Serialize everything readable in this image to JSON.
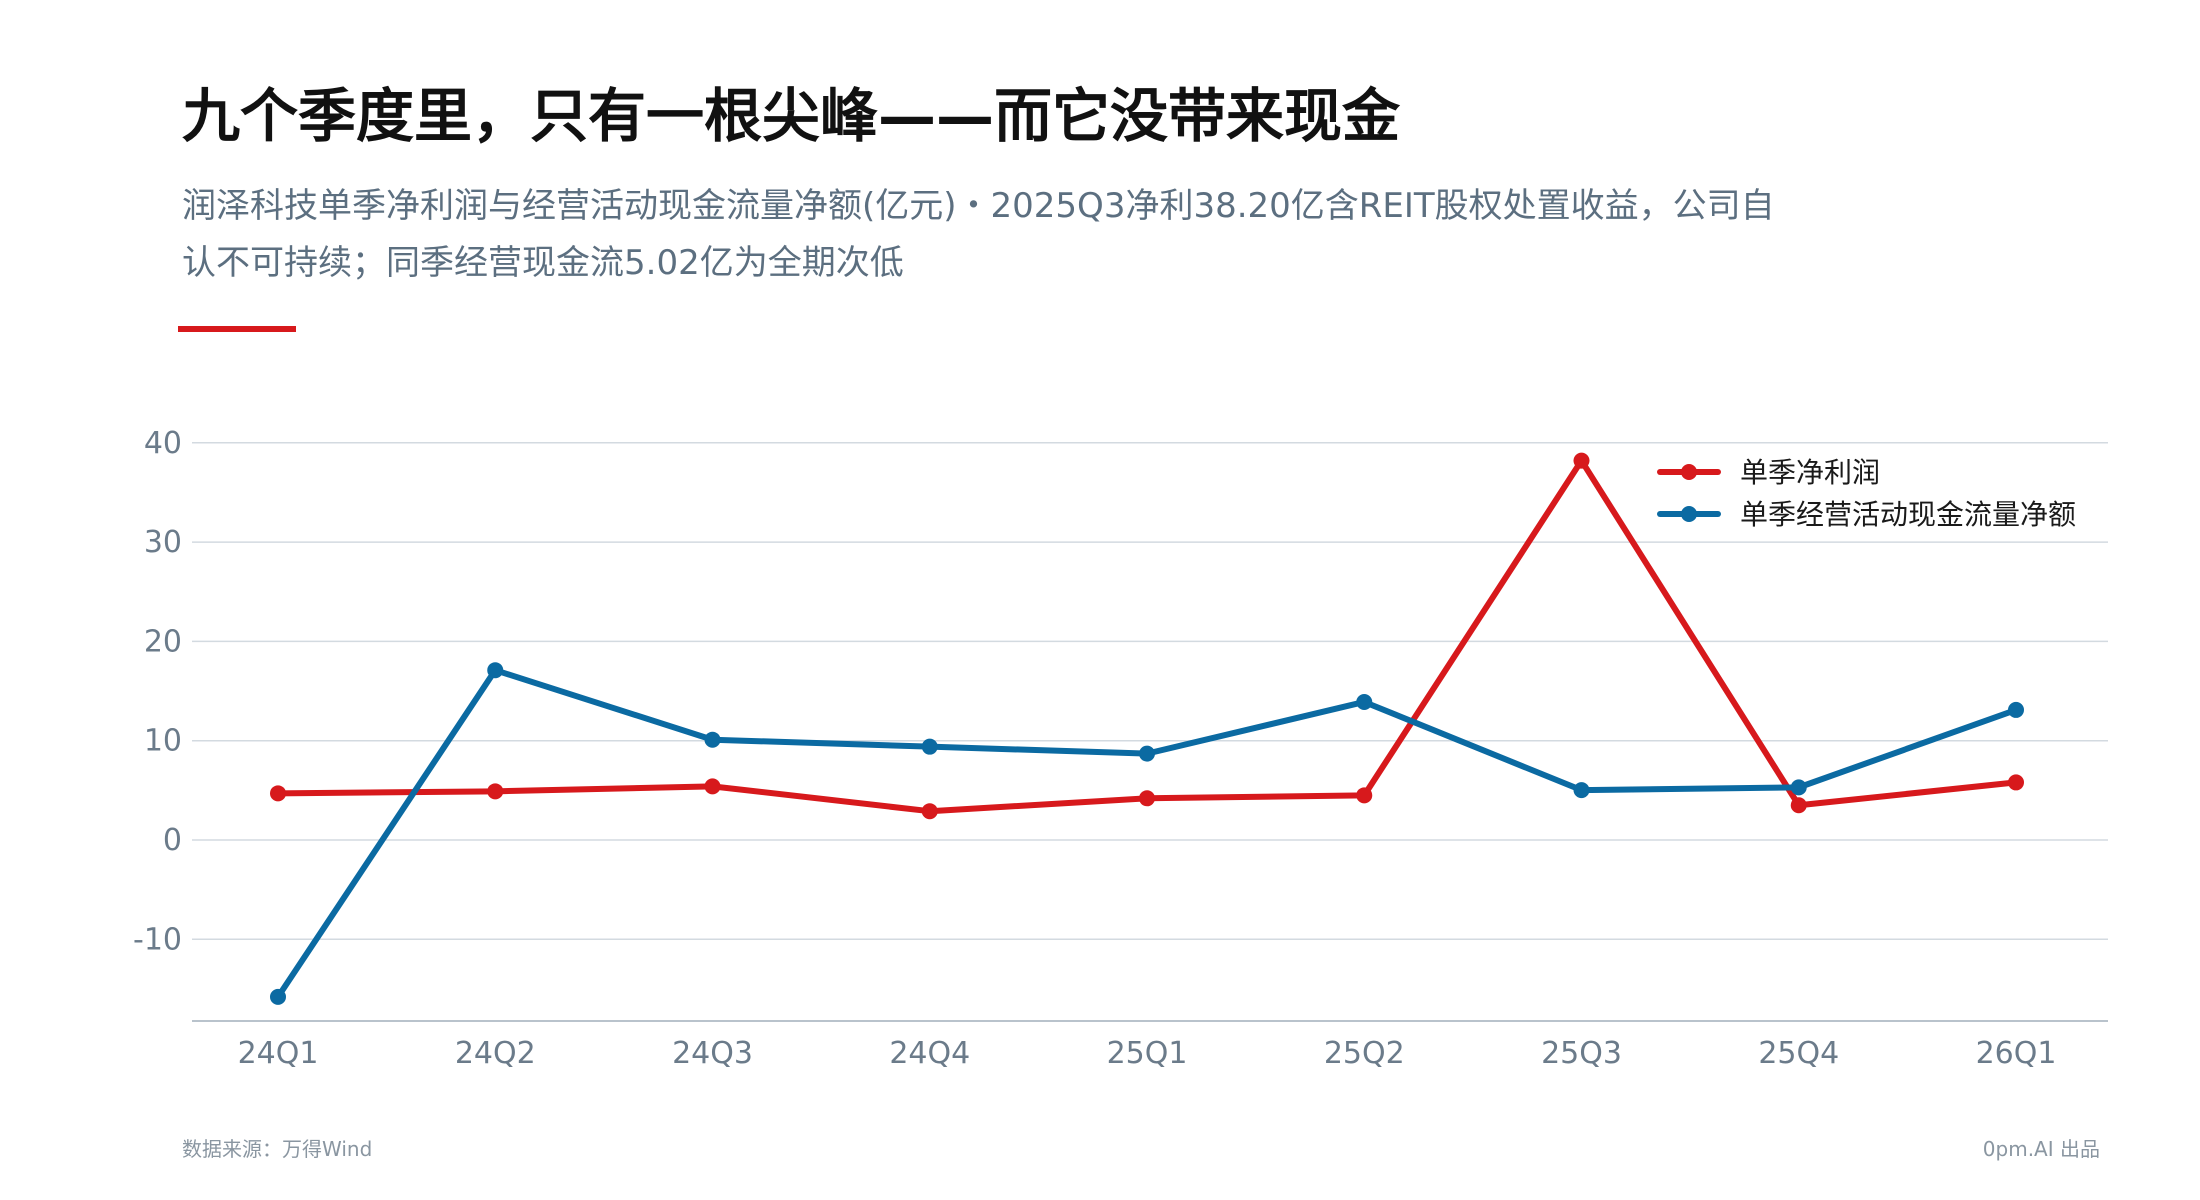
{
  "header": {
    "title": "九个季度里，只有一根尖峰——而它没带来现金",
    "subtitle": "润泽科技单季净利润与经营活动现金流量净额(亿元)・2025Q3净利38.20亿含REIT股权处置收益，公司自认不可持续；同季经营现金流5.02亿为全期次低"
  },
  "footer": {
    "source": "数据来源：万得Wind",
    "credit": "0pm.AI 出品"
  },
  "colors": {
    "accent": "#d7191c",
    "net_profit": "#d7191c",
    "operating_cash_flow": "#0b6aa2",
    "grid": "#d3dae0",
    "axis_text": "#6b7b8a"
  },
  "chart_data": {
    "type": "line",
    "categories": [
      "24Q1",
      "24Q2",
      "24Q3",
      "24Q4",
      "25Q1",
      "25Q2",
      "25Q3",
      "25Q4",
      "26Q1"
    ],
    "series": [
      {
        "name": "单季净利润",
        "color": "#d7191c",
        "values": [
          4.7,
          4.9,
          5.4,
          2.9,
          4.2,
          4.5,
          38.2,
          3.5,
          5.8
        ]
      },
      {
        "name": "单季经营活动现金流量净额",
        "color": "#0b6aa2",
        "values": [
          -15.8,
          17.1,
          10.1,
          9.4,
          8.7,
          13.9,
          5.02,
          5.3,
          13.1
        ]
      }
    ],
    "y_ticks": [
      "40",
      "30",
      "20",
      "10",
      "0",
      "-10"
    ],
    "ylim": [
      -18,
      40
    ],
    "grid": true,
    "legend": "top-right",
    "xlabel": "",
    "ylabel": ""
  }
}
